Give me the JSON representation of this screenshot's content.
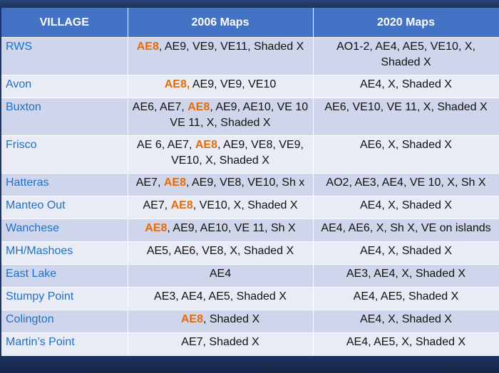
{
  "headers": [
    "VILLAGE",
    "2006 Maps",
    "2020 Maps"
  ],
  "colors": {
    "highlight": "#e36c09",
    "village_text": "#1f6fc9",
    "header_bg": "#4472c4"
  },
  "rows": [
    {
      "village": "RWS",
      "m2006": [
        {
          "t": "AE8",
          "hl": true
        },
        {
          "t": ", AE9, VE9, VE11, Shaded X"
        }
      ],
      "m2020": "AO1-2, AE4, AE5, VE10, X, Shaded X"
    },
    {
      "village": "Avon",
      "m2006": [
        {
          "t": "AE8,",
          "hl": true
        },
        {
          "t": " AE9, VE9, VE10"
        }
      ],
      "m2020": "AE4, X, Shaded X"
    },
    {
      "village": "Buxton",
      "m2006": [
        {
          "t": "AE6, AE7, "
        },
        {
          "t": "AE8",
          "hl": true
        },
        {
          "t": ", AE9, AE10, VE 10 VE 11, X, Shaded X"
        }
      ],
      "m2020": "AE6, VE10, VE 11, X, Shaded X"
    },
    {
      "village": "Frisco",
      "m2006": [
        {
          "t": "AE 6, AE7, "
        },
        {
          "t": "AE8",
          "hl": true
        },
        {
          "t": ", AE9, VE8, VE9, VE10, X, Shaded X"
        }
      ],
      "m2020": "AE6, X, Shaded X"
    },
    {
      "village": "Hatteras",
      "m2006": [
        {
          "t": "AE7, "
        },
        {
          "t": "AE8",
          "hl": true
        },
        {
          "t": ", AE9, VE8, VE10, Sh x"
        }
      ],
      "m2020": "AO2, AE3, AE4, VE 10, X, Sh X"
    },
    {
      "village": "Manteo Out",
      "m2006": [
        {
          "t": "AE7, "
        },
        {
          "t": "AE8",
          "hl": true
        },
        {
          "t": ", VE10, X, Shaded X"
        }
      ],
      "m2020": "AE4, X, Shaded X"
    },
    {
      "village": "Wanchese",
      "m2006": [
        {
          "t": "AE8",
          "hl": true
        },
        {
          "t": ", AE9, AE10, VE 11, Sh X"
        }
      ],
      "m2020": "AE4, AE6, X, Sh X, VE on islands"
    },
    {
      "village": "MH/Mashoes",
      "m2006": [
        {
          "t": "AE5, AE6, VE8, X, Shaded X"
        }
      ],
      "m2020": "AE4, X, Shaded X"
    },
    {
      "village": "East Lake",
      "m2006": [
        {
          "t": "AE4"
        }
      ],
      "m2020": "AE3, AE4, X, Shaded X"
    },
    {
      "village": "Stumpy Point",
      "m2006": [
        {
          "t": "AE3, AE4, AE5, Shaded X"
        }
      ],
      "m2020": "AE4, AE5, Shaded X"
    },
    {
      "village": "Colington",
      "m2006": [
        {
          "t": "AE8",
          "hl": true
        },
        {
          "t": ", Shaded X"
        }
      ],
      "m2020": "AE4, X, Shaded X"
    },
    {
      "village": "Martin’s Point",
      "m2006": [
        {
          "t": "AE7, Shaded X"
        }
      ],
      "m2020": "AE4,  AE5, X, Shaded X"
    }
  ]
}
